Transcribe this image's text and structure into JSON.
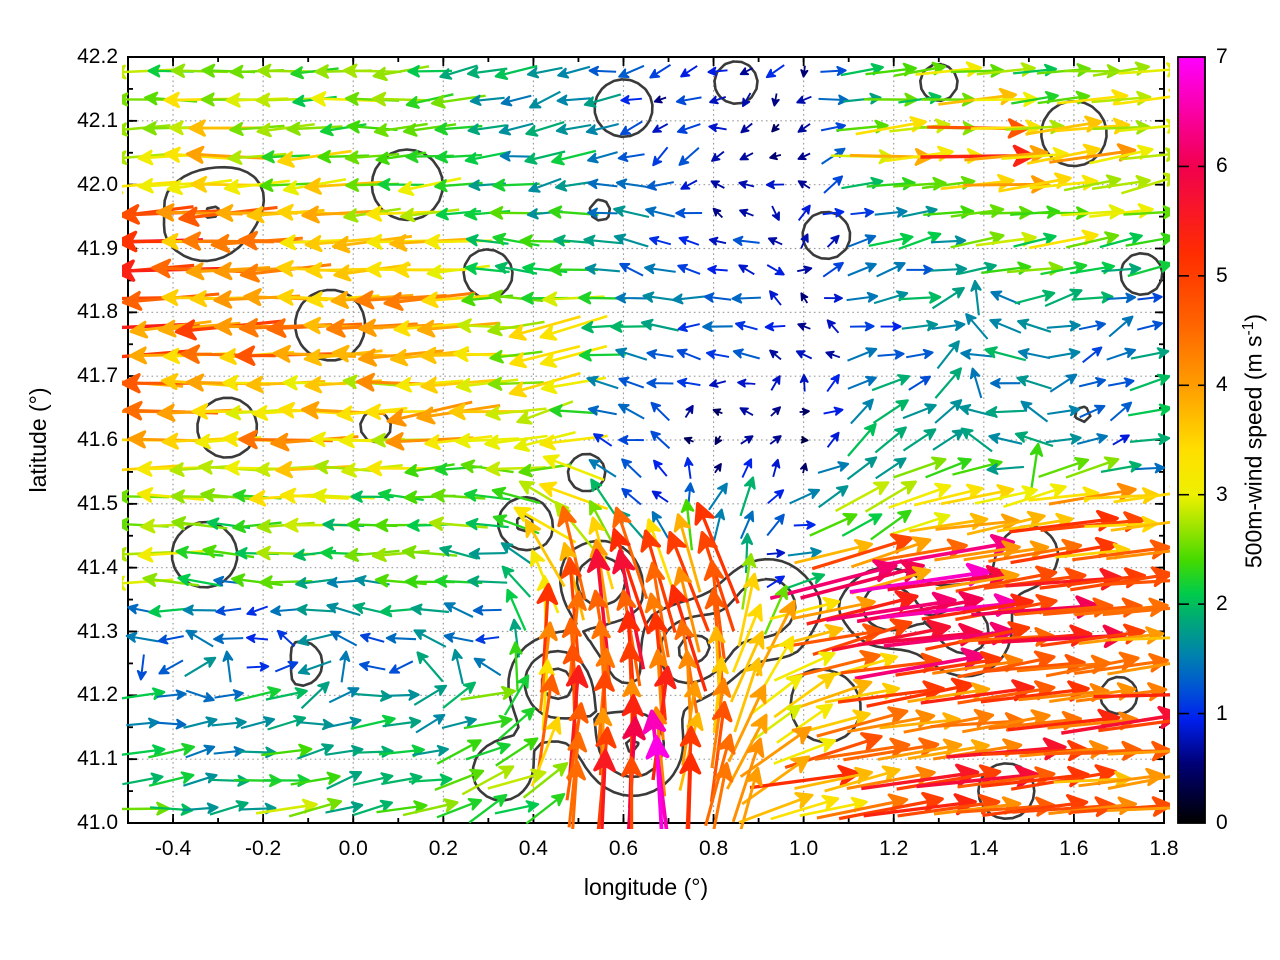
{
  "figure": {
    "background": "#ffffff",
    "axis_color": "#000000",
    "grid_color": "#9a9a9a",
    "contour_color": "#3a3a3a"
  },
  "chart_data": {
    "type": "quiver",
    "title": "",
    "xlabel": "longitude (°)",
    "ylabel": "latitude (°)",
    "xlim": [
      -0.5,
      1.8
    ],
    "ylim": [
      41.0,
      42.2
    ],
    "xticks": [
      -0.4,
      -0.2,
      0.0,
      0.2,
      0.4,
      0.6,
      0.8,
      1.0,
      1.2,
      1.4,
      1.6,
      1.8
    ],
    "xtick_labels": [
      "-0.4",
      "-0.2",
      "0.0",
      "0.2",
      "0.4",
      "0.6",
      "0.8",
      "1.0",
      "1.2",
      "1.4",
      "1.6",
      "1.8"
    ],
    "x_minor_step": 0.1,
    "yticks": [
      41.0,
      41.1,
      41.2,
      41.3,
      41.4,
      41.5,
      41.6,
      41.7,
      41.8,
      41.9,
      42.0,
      42.1,
      42.2
    ],
    "ytick_labels": [
      "41.0",
      "41.1",
      "41.2",
      "41.3",
      "41.4",
      "41.5",
      "41.6",
      "41.7",
      "41.8",
      "41.9",
      "42.0",
      "42.1",
      "42.2"
    ],
    "y_minor_step": 0.05,
    "grid": true,
    "colorbar": {
      "label_pre": "500m-wind speed (m s",
      "label_sup": "-1",
      "label_post": ")",
      "min": 0,
      "max": 7,
      "ticks": [
        0,
        1,
        2,
        3,
        4,
        5,
        6,
        7
      ],
      "tick_labels": [
        "0",
        "1",
        "2",
        "3",
        "4",
        "5",
        "6",
        "7"
      ],
      "palette_stops": [
        [
          0.0,
          "#000000"
        ],
        [
          0.55,
          "#000078"
        ],
        [
          0.95,
          "#0020ee"
        ],
        [
          1.25,
          "#0057d2"
        ],
        [
          1.55,
          "#0084ab"
        ],
        [
          1.85,
          "#00a878"
        ],
        [
          2.1,
          "#00cc4a"
        ],
        [
          2.4,
          "#44da00"
        ],
        [
          2.7,
          "#9ce400"
        ],
        [
          3.0,
          "#eef000"
        ],
        [
          3.4,
          "#ffdf00"
        ],
        [
          4.0,
          "#ff9d00"
        ],
        [
          4.6,
          "#ff6000"
        ],
        [
          5.2,
          "#ff2d00"
        ],
        [
          6.0,
          "#f1004e"
        ],
        [
          6.5,
          "#fa00a5"
        ],
        [
          7.0,
          "#ff00ff"
        ]
      ]
    },
    "quiver": {
      "grid_nx": 36,
      "grid_ny": 27,
      "seed": 1337,
      "jitter": 0.16,
      "units": "m/s",
      "control_points": [
        [
          -0.45,
          42.17,
          -2.3,
          0.1
        ],
        [
          -0.1,
          42.16,
          -2.6,
          0.0
        ],
        [
          0.2,
          42.17,
          -2.0,
          -0.2
        ],
        [
          0.45,
          42.15,
          -1.6,
          -0.4
        ],
        [
          0.7,
          42.16,
          -0.7,
          -0.4
        ],
        [
          0.95,
          42.16,
          -0.5,
          -0.4
        ],
        [
          1.2,
          42.15,
          2.2,
          0.2
        ],
        [
          1.5,
          42.16,
          2.4,
          0.15
        ],
        [
          1.75,
          42.15,
          2.6,
          0.3
        ],
        [
          -0.45,
          42.05,
          -3.2,
          -0.1
        ],
        [
          -0.15,
          42.02,
          -3.0,
          -0.2
        ],
        [
          0.15,
          42.05,
          -2.6,
          -0.3
        ],
        [
          0.45,
          42.02,
          -2.0,
          -0.5
        ],
        [
          0.7,
          42.05,
          -1.0,
          -0.5
        ],
        [
          0.95,
          42.05,
          -0.6,
          -0.2
        ],
        [
          1.2,
          42.07,
          3.4,
          0.2
        ],
        [
          1.42,
          42.06,
          4.6,
          0.1
        ],
        [
          1.65,
          42.05,
          3.4,
          0.3
        ],
        [
          1.78,
          42.0,
          3.0,
          0.5
        ],
        [
          -0.45,
          41.9,
          -5.0,
          -0.3
        ],
        [
          -0.2,
          41.92,
          -4.4,
          -0.2
        ],
        [
          0.1,
          41.9,
          -3.8,
          -0.3
        ],
        [
          0.4,
          41.9,
          -2.2,
          0.4
        ],
        [
          0.62,
          41.9,
          -1.6,
          0.5
        ],
        [
          0.85,
          41.92,
          -0.8,
          0.1
        ],
        [
          1.05,
          41.9,
          0.8,
          0.4
        ],
        [
          1.25,
          41.92,
          1.8,
          0.3
        ],
        [
          1.5,
          41.9,
          2.6,
          0.3
        ],
        [
          1.75,
          41.9,
          2.2,
          0.4
        ],
        [
          -0.45,
          41.78,
          -4.8,
          -0.2
        ],
        [
          -0.15,
          41.77,
          -4.3,
          -0.1
        ],
        [
          0.15,
          41.76,
          -4.0,
          -0.2
        ],
        [
          0.45,
          41.75,
          -3.6,
          -1.0
        ],
        [
          0.68,
          41.78,
          -1.3,
          0.0
        ],
        [
          0.85,
          41.76,
          -1.2,
          0.0
        ],
        [
          1.0,
          41.77,
          -0.6,
          0.1
        ],
        [
          1.2,
          41.75,
          1.4,
          0.3
        ],
        [
          1.45,
          41.75,
          -2.0,
          0.3
        ],
        [
          1.7,
          41.75,
          1.2,
          0.5
        ],
        [
          1.78,
          41.78,
          1.5,
          0.3
        ],
        [
          -0.45,
          41.62,
          -4.2,
          0.0
        ],
        [
          -0.1,
          41.6,
          -3.9,
          -0.1
        ],
        [
          0.2,
          41.63,
          -3.6,
          -0.6
        ],
        [
          0.42,
          41.6,
          -3.2,
          -1.0
        ],
        [
          0.6,
          41.6,
          -0.9,
          0.3
        ],
        [
          0.8,
          41.6,
          -0.25,
          0.0
        ],
        [
          1.0,
          41.6,
          0.3,
          0.15
        ],
        [
          1.18,
          41.58,
          1.6,
          1.2
        ],
        [
          1.45,
          41.6,
          -2.0,
          0.2
        ],
        [
          1.68,
          41.6,
          1.0,
          0.5
        ],
        [
          1.78,
          41.55,
          1.8,
          0.4
        ],
        [
          -0.45,
          41.5,
          -3.0,
          0.1
        ],
        [
          -0.1,
          41.5,
          -2.6,
          0.0
        ],
        [
          0.2,
          41.5,
          -2.6,
          -0.2
        ],
        [
          0.45,
          41.5,
          -3.0,
          1.4
        ],
        [
          0.65,
          41.5,
          -0.6,
          0.6
        ],
        [
          0.82,
          41.49,
          0.5,
          1.4
        ],
        [
          1.0,
          41.47,
          1.0,
          0.3
        ],
        [
          1.15,
          41.5,
          2.0,
          1.5
        ],
        [
          1.4,
          41.48,
          3.8,
          0.6
        ],
        [
          1.65,
          41.47,
          4.6,
          0.5
        ],
        [
          1.78,
          41.5,
          4.0,
          0.4
        ],
        [
          -0.45,
          41.4,
          -2.4,
          0.05
        ],
        [
          -0.15,
          41.4,
          -2.2,
          0.0
        ],
        [
          0.1,
          41.4,
          -2.3,
          0.0
        ],
        [
          0.3,
          41.42,
          -2.0,
          0.3
        ],
        [
          0.48,
          41.4,
          -1.0,
          4.4
        ],
        [
          0.62,
          41.38,
          -1.4,
          5.2
        ],
        [
          0.78,
          41.4,
          -1.8,
          4.6
        ],
        [
          0.95,
          41.4,
          1.0,
          0.3
        ],
        [
          1.1,
          41.38,
          5.6,
          1.2
        ],
        [
          1.3,
          41.36,
          6.2,
          0.9
        ],
        [
          1.55,
          41.4,
          5.2,
          0.6
        ],
        [
          1.75,
          41.42,
          5.0,
          0.5
        ],
        [
          -0.45,
          41.3,
          -1.6,
          0.0
        ],
        [
          -0.2,
          41.28,
          -1.1,
          0.0
        ],
        [
          0.05,
          41.27,
          -1.4,
          0.0
        ],
        [
          0.3,
          41.3,
          -1.2,
          0.2
        ],
        [
          0.45,
          41.28,
          0.3,
          4.8
        ],
        [
          0.6,
          41.3,
          -0.6,
          5.4
        ],
        [
          0.75,
          41.28,
          -1.2,
          5.0
        ],
        [
          0.9,
          41.3,
          1.4,
          3.6
        ],
        [
          1.05,
          41.3,
          4.6,
          1.0
        ],
        [
          1.25,
          41.3,
          6.4,
          0.8
        ],
        [
          1.5,
          41.3,
          5.0,
          0.5
        ],
        [
          1.75,
          41.3,
          4.6,
          0.4
        ],
        [
          -0.45,
          41.18,
          2.0,
          0.15
        ],
        [
          -0.2,
          41.2,
          2.4,
          0.2
        ],
        [
          0.05,
          41.18,
          2.2,
          0.2
        ],
        [
          0.3,
          41.16,
          2.4,
          0.6
        ],
        [
          0.48,
          41.15,
          0.3,
          4.6
        ],
        [
          0.62,
          41.15,
          0.2,
          5.0
        ],
        [
          0.78,
          41.15,
          0.8,
          4.4
        ],
        [
          0.95,
          41.15,
          2.6,
          2.0
        ],
        [
          1.15,
          41.15,
          4.4,
          0.8
        ],
        [
          1.4,
          41.17,
          5.0,
          0.6
        ],
        [
          1.65,
          41.15,
          4.8,
          0.5
        ],
        [
          1.78,
          41.2,
          4.6,
          0.4
        ],
        [
          -0.45,
          41.05,
          2.2,
          0.2
        ],
        [
          -0.15,
          41.04,
          2.5,
          0.25
        ],
        [
          0.15,
          41.05,
          2.3,
          0.3
        ],
        [
          0.38,
          41.04,
          2.6,
          0.8
        ],
        [
          0.55,
          41.03,
          0.5,
          5.2
        ],
        [
          0.68,
          41.04,
          -0.8,
          6.2
        ],
        [
          0.82,
          41.05,
          1.0,
          5.0
        ],
        [
          1.0,
          41.05,
          4.2,
          0.8
        ],
        [
          1.25,
          41.05,
          4.8,
          0.5
        ],
        [
          1.5,
          41.06,
          5.0,
          0.4
        ],
        [
          1.75,
          41.05,
          4.4,
          0.5
        ]
      ]
    },
    "contours": {
      "description": "terrain elevation contour lines",
      "levels": [
        0.42,
        0.78,
        1.14
      ],
      "seed": 77,
      "random_bumps": 26,
      "bumps": [
        [
          0.45,
          41.22,
          0.1,
          1.25
        ],
        [
          0.62,
          41.12,
          0.11,
          1.15
        ],
        [
          0.55,
          41.38,
          0.09,
          1.1
        ],
        [
          0.75,
          41.27,
          0.1,
          1.2
        ],
        [
          0.92,
          41.34,
          0.11,
          1.05
        ],
        [
          1.18,
          41.34,
          0.09,
          1.0
        ],
        [
          1.36,
          41.3,
          0.11,
          0.95
        ],
        [
          0.38,
          41.47,
          0.07,
          0.85
        ],
        [
          0.52,
          41.55,
          0.06,
          0.7
        ],
        [
          0.33,
          41.08,
          0.09,
          0.7
        ],
        [
          1.05,
          41.18,
          0.1,
          0.75
        ],
        [
          1.5,
          41.42,
          0.09,
          0.7
        ],
        [
          -0.33,
          41.95,
          0.13,
          0.75
        ],
        [
          -0.05,
          41.78,
          0.11,
          0.7
        ],
        [
          -0.28,
          41.62,
          0.1,
          0.65
        ],
        [
          0.12,
          42.0,
          0.11,
          0.7
        ],
        [
          0.3,
          41.86,
          0.09,
          0.6
        ],
        [
          -0.33,
          41.42,
          0.11,
          0.65
        ],
        [
          -0.12,
          41.25,
          0.1,
          0.55
        ],
        [
          0.05,
          41.62,
          0.08,
          0.5
        ],
        [
          0.6,
          42.12,
          0.09,
          0.7
        ],
        [
          0.85,
          42.16,
          0.08,
          0.6
        ],
        [
          0.55,
          41.96,
          0.06,
          0.5
        ],
        [
          1.05,
          41.92,
          0.09,
          0.6
        ],
        [
          1.6,
          42.08,
          0.11,
          0.65
        ],
        [
          1.75,
          41.86,
          0.09,
          0.55
        ],
        [
          1.3,
          42.16,
          0.08,
          0.55
        ],
        [
          1.15,
          41.66,
          0.06,
          0.45
        ],
        [
          1.62,
          41.64,
          0.07,
          0.45
        ],
        [
          0.82,
          41.68,
          0.17,
          -1.1
        ],
        [
          1.45,
          41.05,
          0.12,
          0.55
        ],
        [
          1.7,
          41.2,
          0.1,
          0.5
        ]
      ]
    }
  }
}
